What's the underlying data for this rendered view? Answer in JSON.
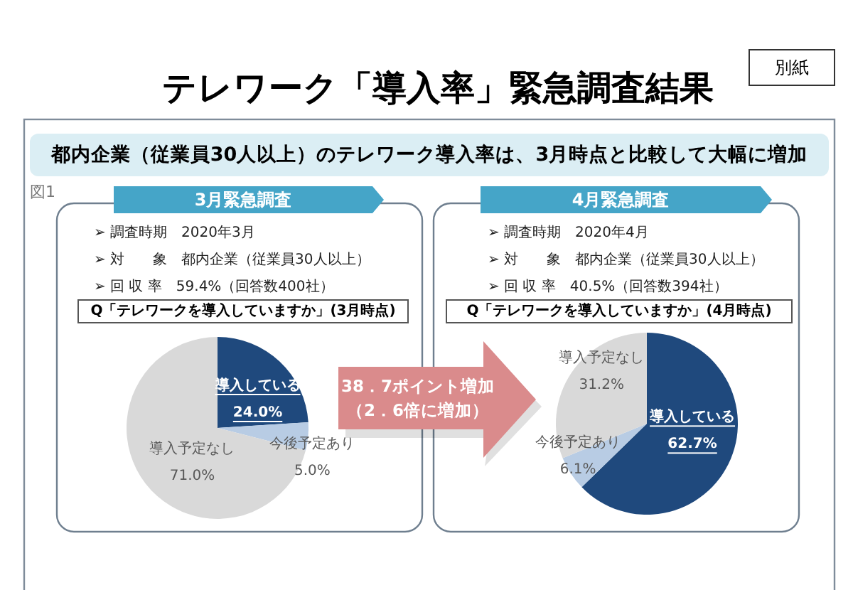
{
  "chart_data": [
    {
      "type": "other",
      "title": "テレワーク「導入率」緊急調査結果",
      "subtitle": "都内企業（従業員30人以上）のテレワーク導入率は、3月時点と比較して大幅に増加",
      "annotations": [
        "別紙",
        "図1"
      ]
    },
    {
      "type": "pie",
      "title": "3月緊急調査",
      "subtitle": "Q「テレワークを導入していますか」(3月時点)",
      "annotations": [
        "➢ 調査時期　2020年3月",
        "➢ 対　　象　都内企業（従業員30人以上）",
        "➢ 回 収 率　59.4%（回答数400社）"
      ],
      "categories": [
        "導入している",
        "今後予定あり",
        "導入予定なし"
      ],
      "values": [
        24.0,
        5.0,
        71.0
      ],
      "value_labels": [
        "24.0%",
        "5.0%",
        "71.0%"
      ],
      "colors": [
        "#1f497d",
        "#b8cce4",
        "#d9d9d9"
      ]
    },
    {
      "type": "other",
      "annotations": [
        "38．7ポイント増加",
        "（2．6倍に増加）"
      ]
    },
    {
      "type": "pie",
      "title": "4月緊急調査",
      "subtitle": "Q「テレワークを導入していますか」(4月時点)",
      "annotations": [
        "➢ 調査時期　2020年4月",
        "➢ 対　　象　都内企業（従業員30人以上）",
        "➢ 回 収 率　40.5%（回答数394社）"
      ],
      "categories": [
        "導入している",
        "今後予定あり",
        "導入予定なし"
      ],
      "values": [
        62.7,
        6.1,
        31.2
      ],
      "value_labels": [
        "62.7%",
        "6.1%",
        "31.2%"
      ],
      "colors": [
        "#1f497d",
        "#b8cce4",
        "#d9d9d9"
      ]
    }
  ]
}
